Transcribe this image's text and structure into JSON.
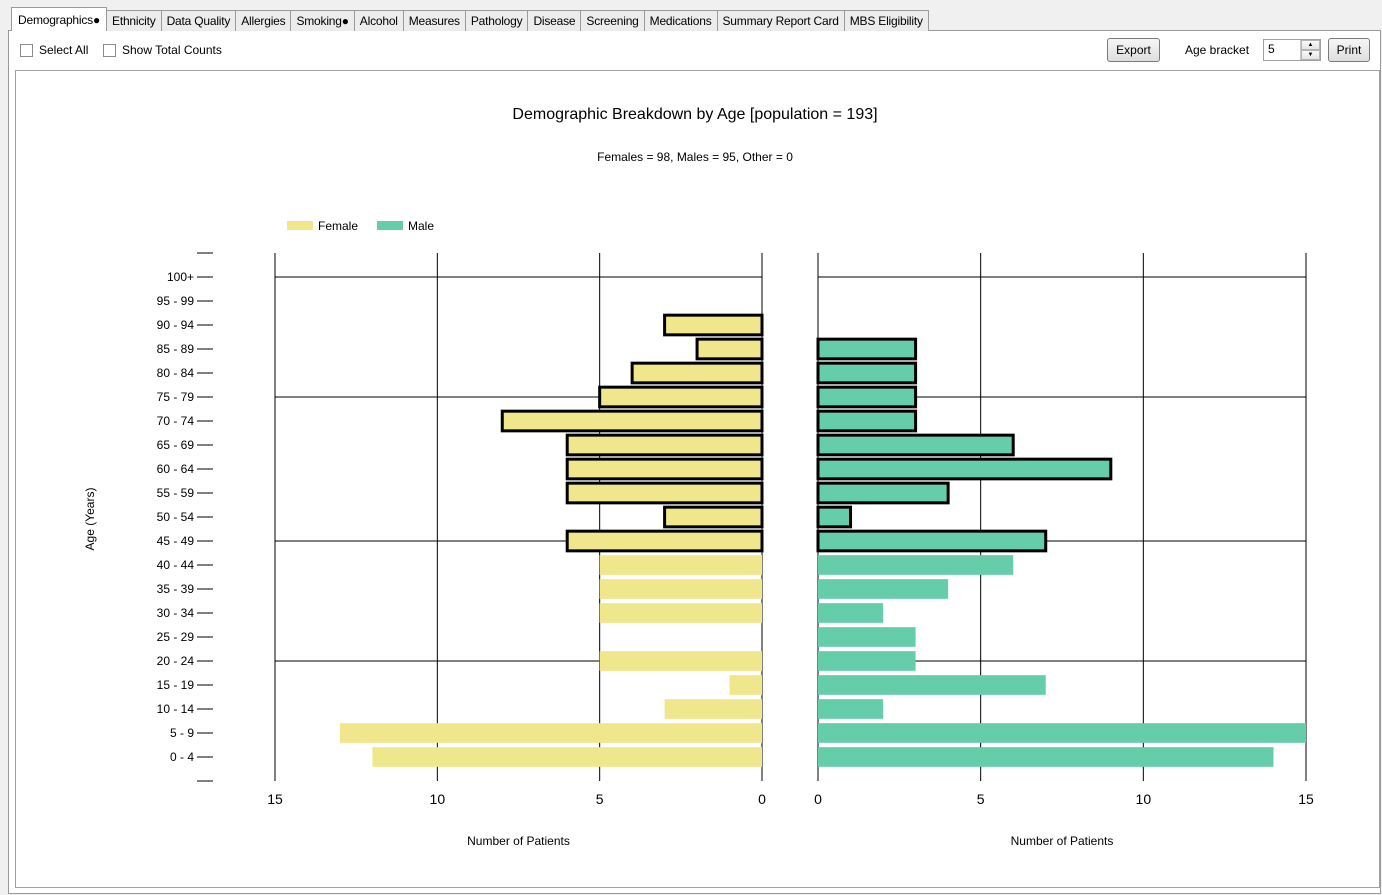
{
  "tabs": [
    {
      "label": "Demographics●",
      "active": true
    },
    {
      "label": "Ethnicity"
    },
    {
      "label": "Data Quality"
    },
    {
      "label": "Allergies"
    },
    {
      "label": "Smoking●"
    },
    {
      "label": "Alcohol"
    },
    {
      "label": "Measures"
    },
    {
      "label": "Pathology"
    },
    {
      "label": "Disease"
    },
    {
      "label": "Screening"
    },
    {
      "label": "Medications"
    },
    {
      "label": "Summary Report Card"
    },
    {
      "label": "MBS Eligibility"
    }
  ],
  "toolbar": {
    "select_all_label": "Select All",
    "show_total_counts_label": "Show Total Counts",
    "export_label": "Export",
    "age_bracket_label": "Age bracket",
    "age_bracket_value": "5",
    "print_label": "Print"
  },
  "chart_data": {
    "type": "bar",
    "orientation": "horizontal",
    "layout": "population-pyramid",
    "title": "Demographic Breakdown by Age [population = 193]",
    "subtitle": "Females = 98, Males = 95, Other = 0",
    "ylabel": "Age (Years)",
    "xlabel_left": "Number of Patients",
    "xlabel_right": "Number of Patients",
    "categories": [
      "100+",
      "95 - 99",
      "90 - 94",
      "85 - 89",
      "80 - 84",
      "75 - 79",
      "70 - 74",
      "65 - 69",
      "60 - 64",
      "55 - 59",
      "50 - 54",
      "45 - 49",
      "40 - 44",
      "35 - 39",
      "30 - 34",
      "25 - 29",
      "20 - 24",
      "15 - 19",
      "10 - 14",
      "5 - 9",
      "0 - 4"
    ],
    "series": [
      {
        "name": "Female",
        "color": "#f0e68c",
        "values": [
          0,
          0,
          3,
          2,
          4,
          5,
          8,
          6,
          6,
          6,
          3,
          6,
          5,
          5,
          5,
          0,
          5,
          1,
          3,
          13,
          12
        ]
      },
      {
        "name": "Male",
        "color": "#66cdaa",
        "values": [
          0,
          0,
          0,
          3,
          3,
          3,
          3,
          6,
          9,
          4,
          1,
          7,
          6,
          4,
          2,
          3,
          3,
          7,
          2,
          15,
          14
        ]
      }
    ],
    "outlined_categories": [
      "90 - 94",
      "85 - 89",
      "80 - 84",
      "75 - 79",
      "70 - 74",
      "65 - 69",
      "60 - 64",
      "55 - 59",
      "50 - 54",
      "45 - 49"
    ],
    "xlim": [
      0,
      15
    ],
    "xticks": [
      0,
      5,
      10,
      15
    ],
    "legend_position": "top-left",
    "grid": true
  }
}
